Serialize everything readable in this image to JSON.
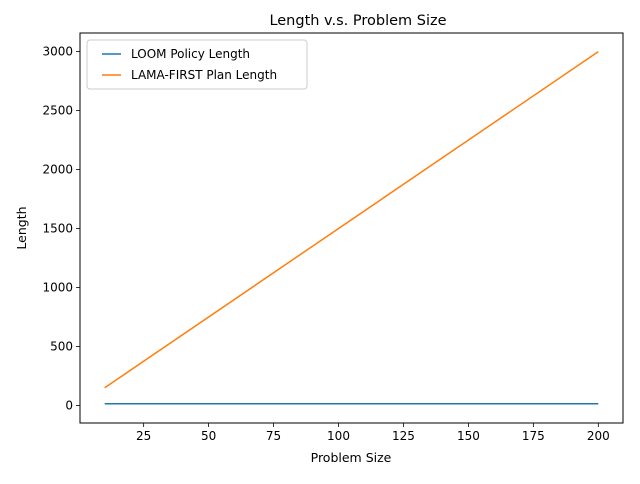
{
  "chart_data": {
    "type": "line",
    "title": "Length v.s. Problem Size",
    "xlabel": "Problem Size",
    "ylabel": "Length",
    "xlim": [
      0.5,
      209.5
    ],
    "ylim": [
      -148.5,
      3157.5
    ],
    "xticks": [
      25,
      50,
      75,
      100,
      125,
      150,
      175,
      200
    ],
    "yticks": [
      0,
      500,
      1000,
      1500,
      2000,
      2500,
      3000
    ],
    "grid": false,
    "legend_position": "top-left",
    "series": [
      {
        "name": "LOOM Policy Length",
        "color": "#1f77b4",
        "x": [
          10,
          200
        ],
        "y": [
          15,
          15
        ]
      },
      {
        "name": "LAMA-FIRST Plan Length",
        "color": "#ff7f0e",
        "x": [
          10,
          200
        ],
        "y": [
          150,
          3000
        ]
      }
    ]
  }
}
